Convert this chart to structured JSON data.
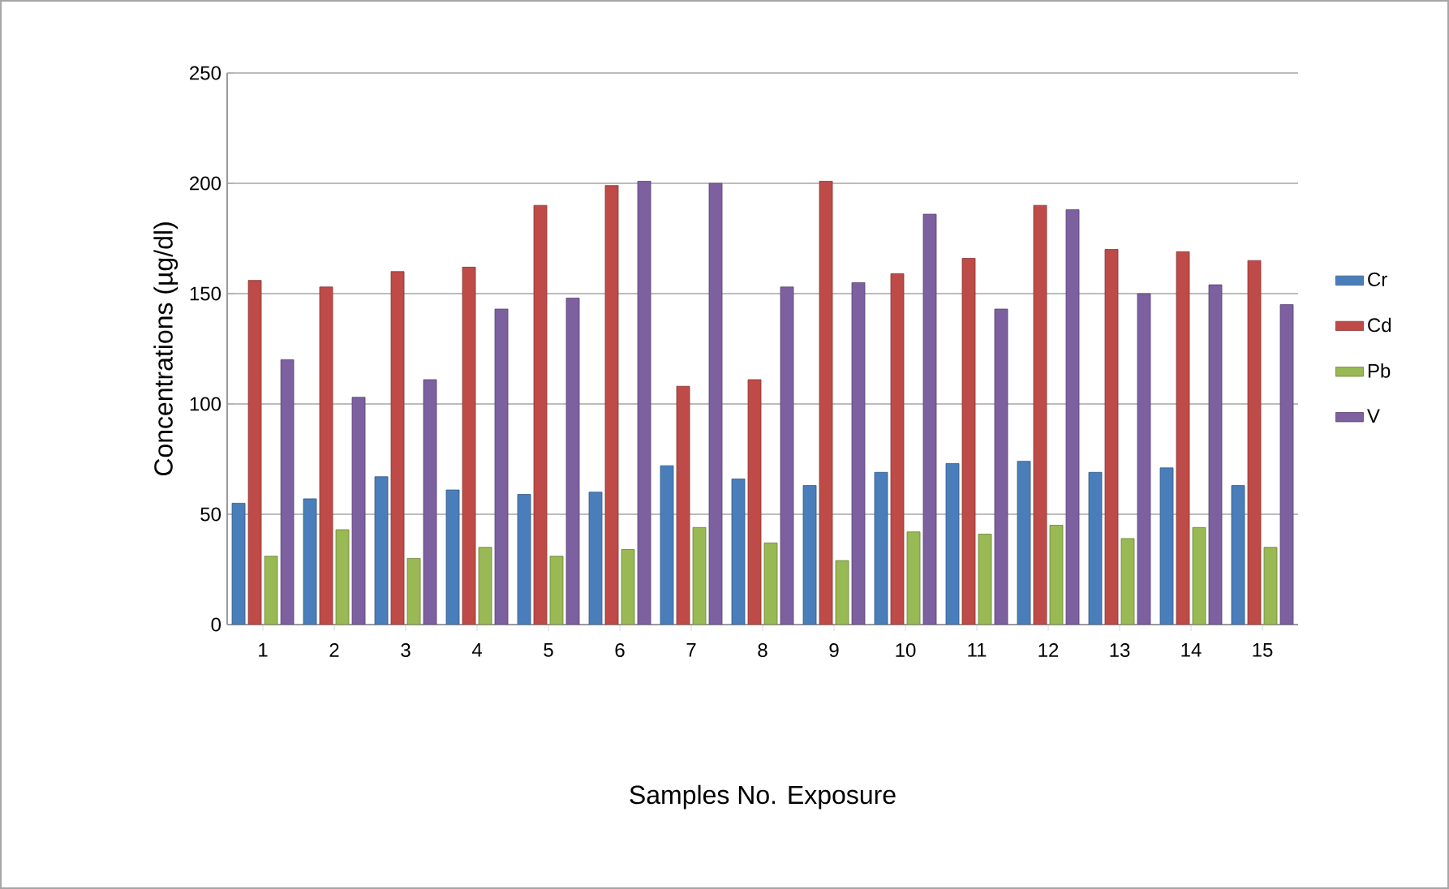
{
  "chart_data": {
    "type": "bar",
    "xlabel": "Samples No. Exposure",
    "ylabel": "Concentrations (µg/dl)",
    "categories": [
      "1",
      "2",
      "3",
      "4",
      "5",
      "6",
      "7",
      "8",
      "9",
      "10",
      "11",
      "12",
      "13",
      "14",
      "15"
    ],
    "series": [
      {
        "name": "Cr",
        "color": "#4a7ebb",
        "values": [
          55,
          57,
          67,
          61,
          59,
          60,
          72,
          66,
          63,
          69,
          73,
          74,
          69,
          71,
          63
        ]
      },
      {
        "name": "Cd",
        "color": "#be4b48",
        "values": [
          156,
          153,
          160,
          162,
          190,
          199,
          108,
          111,
          201,
          159,
          166,
          190,
          170,
          169,
          165
        ]
      },
      {
        "name": "Pb",
        "color": "#98b954",
        "values": [
          31,
          43,
          30,
          35,
          31,
          34,
          44,
          37,
          29,
          42,
          41,
          45,
          39,
          44,
          35
        ]
      },
      {
        "name": "V",
        "color": "#7d60a0",
        "values": [
          120,
          103,
          111,
          143,
          148,
          201,
          200,
          153,
          155,
          186,
          143,
          188,
          150,
          154,
          145
        ]
      }
    ],
    "ylim": [
      0,
      250
    ],
    "yticks": [
      0,
      50,
      100,
      150,
      200,
      250
    ],
    "grid": "y",
    "legend": "right"
  }
}
